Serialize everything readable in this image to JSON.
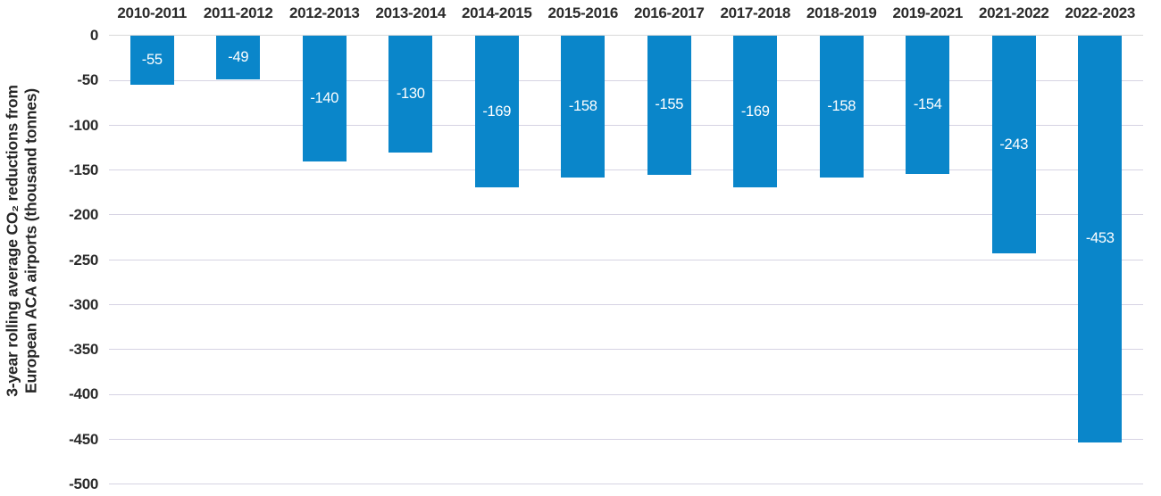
{
  "chart_data": {
    "type": "bar",
    "orientation": "vertical-negative",
    "categories": [
      "2010-2011",
      "2011-2012",
      "2012-2013",
      "2013-2014",
      "2014-2015",
      "2015-2016",
      "2016-2017",
      "2017-2018",
      "2018-2019",
      "2019-2021",
      "2021-2022",
      "2022-2023"
    ],
    "values": [
      -55,
      -49,
      -140,
      -130,
      -169,
      -158,
      -155,
      -169,
      -158,
      -154,
      -243,
      -453
    ],
    "data_labels": [
      "-55",
      "-49",
      "-140",
      "-130",
      "-169",
      "-158",
      "-155",
      "-169",
      "-158",
      "-154",
      "-243",
      "-453"
    ],
    "ylabel_line1": "3-year rolling average CO₂ reductions from",
    "ylabel_line2": "European ACA airports (thousand tonnes)",
    "yticks": [
      0,
      -50,
      -100,
      -150,
      -200,
      -250,
      -300,
      -350,
      -400,
      -450,
      -500
    ],
    "ylim": [
      0,
      -500
    ],
    "grid": true,
    "legend": "none",
    "x_axis_position": "top",
    "colors": {
      "bar": "#0a86ca",
      "gridline": "#d6d3e3",
      "zero_line": "#d9d9d9",
      "bar_label": "#ffffff",
      "axis_text": "#2b2b2b"
    }
  }
}
